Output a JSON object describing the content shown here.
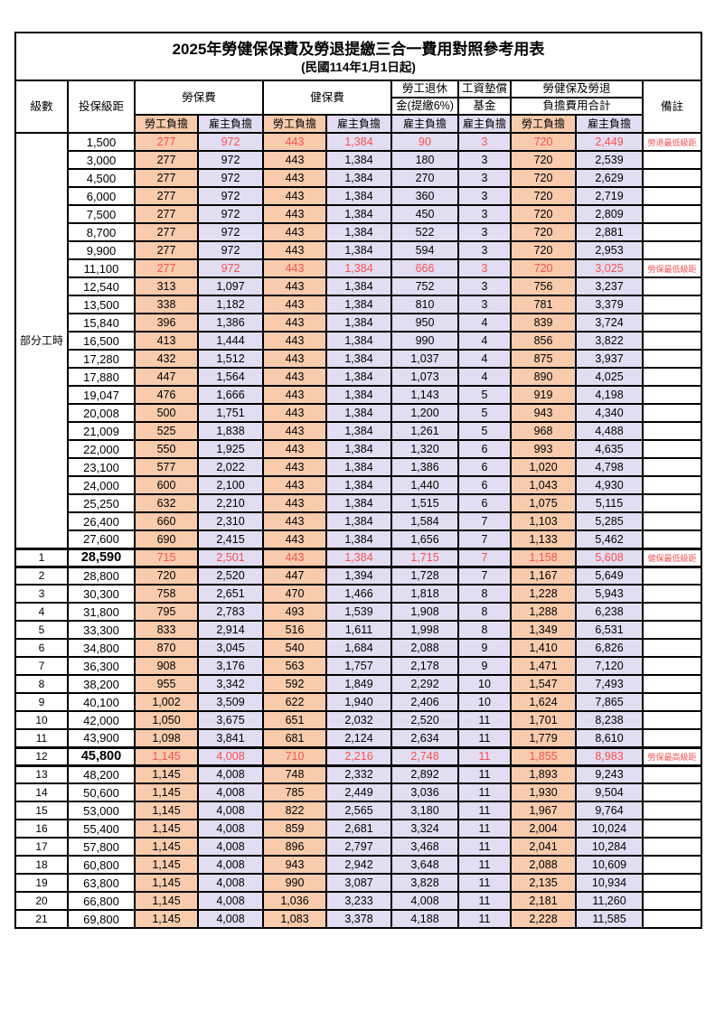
{
  "title": {
    "main": "2025年勞健保保費及勞退提繳三合一費用對照參考用表",
    "effective_date": "(民國114年1月1日起)"
  },
  "header": {
    "level": "級數",
    "bracket": "投保級距",
    "labor_insurance": "勞保費",
    "health_insurance": "健保費",
    "pension_line1": "勞工退休",
    "pension_line2": "金(提繳6%)",
    "wage_fund_line1": "工資墊償",
    "wage_fund_line2": "基金",
    "total_line1": "勞健保及勞退",
    "total_line2": "負擔費用合計",
    "remark": "備註",
    "employee_label": "勞工負擔",
    "employer_label": "雇主負擔"
  },
  "colors": {
    "employee_bg": "#F8CBAD",
    "employer_bg": "#E2DDF2",
    "highlight_text": "#FA5050"
  },
  "table": {
    "part_time_label": "部分工時",
    "part_time_rowspan": 23,
    "rows": [
      {
        "level": "",
        "bracket": "1,500",
        "values": [
          "277",
          "972",
          "443",
          "1,384",
          "90",
          "3",
          "720",
          "2,449"
        ],
        "remark": "勞退最低級距",
        "red": true
      },
      {
        "level": "",
        "bracket": "3,000",
        "values": [
          "277",
          "972",
          "443",
          "1,384",
          "180",
          "3",
          "720",
          "2,539"
        ]
      },
      {
        "level": "",
        "bracket": "4,500",
        "values": [
          "277",
          "972",
          "443",
          "1,384",
          "270",
          "3",
          "720",
          "2,629"
        ]
      },
      {
        "level": "",
        "bracket": "6,000",
        "values": [
          "277",
          "972",
          "443",
          "1,384",
          "360",
          "3",
          "720",
          "2,719"
        ]
      },
      {
        "level": "",
        "bracket": "7,500",
        "values": [
          "277",
          "972",
          "443",
          "1,384",
          "450",
          "3",
          "720",
          "2,809"
        ]
      },
      {
        "level": "",
        "bracket": "8,700",
        "values": [
          "277",
          "972",
          "443",
          "1,384",
          "522",
          "3",
          "720",
          "2,881"
        ]
      },
      {
        "level": "",
        "bracket": "9,900",
        "values": [
          "277",
          "972",
          "443",
          "1,384",
          "594",
          "3",
          "720",
          "2,953"
        ]
      },
      {
        "level": "",
        "bracket": "11,100",
        "values": [
          "277",
          "972",
          "443",
          "1,384",
          "666",
          "3",
          "720",
          "3,025"
        ],
        "remark": "勞保最低級距",
        "red": true
      },
      {
        "level": "",
        "bracket": "12,540",
        "values": [
          "313",
          "1,097",
          "443",
          "1,384",
          "752",
          "3",
          "756",
          "3,237"
        ]
      },
      {
        "level": "",
        "bracket": "13,500",
        "values": [
          "338",
          "1,182",
          "443",
          "1,384",
          "810",
          "3",
          "781",
          "3,379"
        ]
      },
      {
        "level": "",
        "bracket": "15,840",
        "values": [
          "396",
          "1,386",
          "443",
          "1,384",
          "950",
          "4",
          "839",
          "3,724"
        ]
      },
      {
        "level": "",
        "bracket": "16,500",
        "values": [
          "413",
          "1,444",
          "443",
          "1,384",
          "990",
          "4",
          "856",
          "3,822"
        ]
      },
      {
        "level": "",
        "bracket": "17,280",
        "values": [
          "432",
          "1,512",
          "443",
          "1,384",
          "1,037",
          "4",
          "875",
          "3,937"
        ]
      },
      {
        "level": "",
        "bracket": "17,880",
        "values": [
          "447",
          "1,564",
          "443",
          "1,384",
          "1,073",
          "4",
          "890",
          "4,025"
        ]
      },
      {
        "level": "",
        "bracket": "19,047",
        "values": [
          "476",
          "1,666",
          "443",
          "1,384",
          "1,143",
          "5",
          "919",
          "4,198"
        ]
      },
      {
        "level": "",
        "bracket": "20,008",
        "values": [
          "500",
          "1,751",
          "443",
          "1,384",
          "1,200",
          "5",
          "943",
          "4,340"
        ]
      },
      {
        "level": "",
        "bracket": "21,009",
        "values": [
          "525",
          "1,838",
          "443",
          "1,384",
          "1,261",
          "5",
          "968",
          "4,488"
        ]
      },
      {
        "level": "",
        "bracket": "22,000",
        "values": [
          "550",
          "1,925",
          "443",
          "1,384",
          "1,320",
          "6",
          "993",
          "4,635"
        ]
      },
      {
        "level": "",
        "bracket": "23,100",
        "values": [
          "577",
          "2,022",
          "443",
          "1,384",
          "1,386",
          "6",
          "1,020",
          "4,798"
        ]
      },
      {
        "level": "",
        "bracket": "24,000",
        "values": [
          "600",
          "2,100",
          "443",
          "1,384",
          "1,440",
          "6",
          "1,043",
          "4,930"
        ]
      },
      {
        "level": "",
        "bracket": "25,250",
        "values": [
          "632",
          "2,210",
          "443",
          "1,384",
          "1,515",
          "6",
          "1,075",
          "5,115"
        ]
      },
      {
        "level": "",
        "bracket": "26,400",
        "values": [
          "660",
          "2,310",
          "443",
          "1,384",
          "1,584",
          "7",
          "1,103",
          "5,285"
        ]
      },
      {
        "level": "",
        "bracket": "27,600",
        "values": [
          "690",
          "2,415",
          "443",
          "1,384",
          "1,656",
          "7",
          "1,133",
          "5,462"
        ]
      },
      {
        "level": "1",
        "bracket": "28,590",
        "values": [
          "715",
          "2,501",
          "443",
          "1,384",
          "1,715",
          "7",
          "1,158",
          "5,608"
        ],
        "remark": "健保最低級距",
        "red": true,
        "bold": true,
        "heavy": true
      },
      {
        "level": "2",
        "bracket": "28,800",
        "values": [
          "720",
          "2,520",
          "447",
          "1,394",
          "1,728",
          "7",
          "1,167",
          "5,649"
        ]
      },
      {
        "level": "3",
        "bracket": "30,300",
        "values": [
          "758",
          "2,651",
          "470",
          "1,466",
          "1,818",
          "8",
          "1,228",
          "5,943"
        ]
      },
      {
        "level": "4",
        "bracket": "31,800",
        "values": [
          "795",
          "2,783",
          "493",
          "1,539",
          "1,908",
          "8",
          "1,288",
          "6,238"
        ]
      },
      {
        "level": "5",
        "bracket": "33,300",
        "values": [
          "833",
          "2,914",
          "516",
          "1,611",
          "1,998",
          "8",
          "1,349",
          "6,531"
        ]
      },
      {
        "level": "6",
        "bracket": "34,800",
        "values": [
          "870",
          "3,045",
          "540",
          "1,684",
          "2,088",
          "9",
          "1,410",
          "6,826"
        ]
      },
      {
        "level": "7",
        "bracket": "36,300",
        "values": [
          "908",
          "3,176",
          "563",
          "1,757",
          "2,178",
          "9",
          "1,471",
          "7,120"
        ]
      },
      {
        "level": "8",
        "bracket": "38,200",
        "values": [
          "955",
          "3,342",
          "592",
          "1,849",
          "2,292",
          "10",
          "1,547",
          "7,493"
        ]
      },
      {
        "level": "9",
        "bracket": "40,100",
        "values": [
          "1,002",
          "3,509",
          "622",
          "1,940",
          "2,406",
          "10",
          "1,624",
          "7,865"
        ]
      },
      {
        "level": "10",
        "bracket": "42,000",
        "values": [
          "1,050",
          "3,675",
          "651",
          "2,032",
          "2,520",
          "11",
          "1,701",
          "8,238"
        ]
      },
      {
        "level": "11",
        "bracket": "43,900",
        "values": [
          "1,098",
          "3,841",
          "681",
          "2,124",
          "2,634",
          "11",
          "1,779",
          "8,610"
        ]
      },
      {
        "level": "12",
        "bracket": "45,800",
        "values": [
          "1,145",
          "4,008",
          "710",
          "2,216",
          "2,748",
          "11",
          "1,855",
          "8,983"
        ],
        "remark": "勞保最高級距",
        "red": true,
        "bold": true,
        "heavy": true
      },
      {
        "level": "13",
        "bracket": "48,200",
        "values": [
          "1,145",
          "4,008",
          "748",
          "2,332",
          "2,892",
          "11",
          "1,893",
          "9,243"
        ]
      },
      {
        "level": "14",
        "bracket": "50,600",
        "values": [
          "1,145",
          "4,008",
          "785",
          "2,449",
          "3,036",
          "11",
          "1,930",
          "9,504"
        ]
      },
      {
        "level": "15",
        "bracket": "53,000",
        "values": [
          "1,145",
          "4,008",
          "822",
          "2,565",
          "3,180",
          "11",
          "1,967",
          "9,764"
        ]
      },
      {
        "level": "16",
        "bracket": "55,400",
        "values": [
          "1,145",
          "4,008",
          "859",
          "2,681",
          "3,324",
          "11",
          "2,004",
          "10,024"
        ]
      },
      {
        "level": "17",
        "bracket": "57,800",
        "values": [
          "1,145",
          "4,008",
          "896",
          "2,797",
          "3,468",
          "11",
          "2,041",
          "10,284"
        ]
      },
      {
        "level": "18",
        "bracket": "60,800",
        "values": [
          "1,145",
          "4,008",
          "943",
          "2,942",
          "3,648",
          "11",
          "2,088",
          "10,609"
        ]
      },
      {
        "level": "19",
        "bracket": "63,800",
        "values": [
          "1,145",
          "4,008",
          "990",
          "3,087",
          "3,828",
          "11",
          "2,135",
          "10,934"
        ]
      },
      {
        "level": "20",
        "bracket": "66,800",
        "values": [
          "1,145",
          "4,008",
          "1,036",
          "3,233",
          "4,008",
          "11",
          "2,181",
          "11,260"
        ]
      },
      {
        "level": "21",
        "bracket": "69,800",
        "values": [
          "1,145",
          "4,008",
          "1,083",
          "3,378",
          "4,188",
          "11",
          "2,228",
          "11,585"
        ]
      }
    ]
  }
}
